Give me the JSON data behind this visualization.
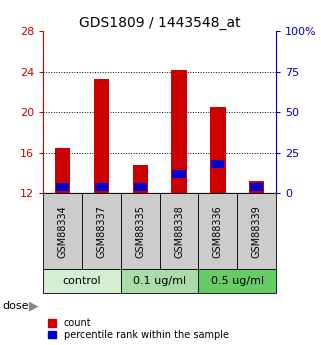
{
  "title": "GDS1809 / 1443548_at",
  "samples": [
    "GSM88334",
    "GSM88337",
    "GSM88335",
    "GSM88338",
    "GSM88336",
    "GSM88339"
  ],
  "count_values": [
    16.5,
    23.3,
    14.8,
    24.2,
    20.5,
    13.2
  ],
  "blue_bottoms": [
    12.2,
    12.2,
    12.2,
    13.5,
    14.5,
    12.2
  ],
  "blue_heights": [
    0.8,
    0.8,
    0.8,
    0.8,
    0.8,
    0.8
  ],
  "ymin": 12,
  "ymax": 28,
  "yticks": [
    12,
    16,
    20,
    24,
    28
  ],
  "right_yticks": [
    0,
    25,
    50,
    75,
    100
  ],
  "groups": [
    {
      "label": "control",
      "start": 0,
      "end": 2,
      "color": "#d4eed4"
    },
    {
      "label": "0.1 ug/ml",
      "start": 2,
      "end": 4,
      "color": "#aadcaa"
    },
    {
      "label": "0.5 ug/ml",
      "start": 4,
      "end": 6,
      "color": "#66cc66"
    }
  ],
  "bar_width": 0.4,
  "bar_color_red": "#cc0000",
  "bar_color_blue": "#0000cc",
  "tick_label_bg": "#cccccc",
  "legend_red_label": "count",
  "legend_blue_label": "percentile rank within the sample",
  "dose_label": "dose",
  "right_axis_color": "#0000cc",
  "left_axis_color": "#cc0000"
}
